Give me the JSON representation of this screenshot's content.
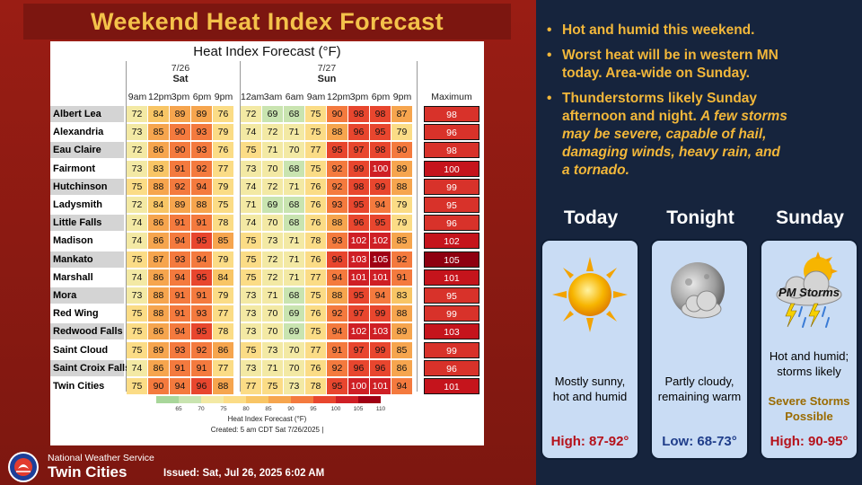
{
  "title": "Weekend Heat Index Forecast",
  "table": {
    "title": "Heat Index Forecast (°F)",
    "days": [
      {
        "date": "7/26",
        "name": "Sat"
      },
      {
        "date": "7/27",
        "name": "Sun"
      }
    ],
    "times": [
      "9am",
      "12pm",
      "3pm",
      "6pm",
      "9pm",
      "12am",
      "3am",
      "6am",
      "9am",
      "12pm",
      "3pm",
      "6pm",
      "9pm"
    ],
    "max_header": "Maximum",
    "rows": [
      {
        "city": "Albert Lea",
        "values": [
          72,
          84,
          89,
          89,
          76,
          72,
          69,
          68,
          75,
          90,
          98,
          98,
          87
        ],
        "max": 98
      },
      {
        "city": "Alexandria",
        "values": [
          73,
          85,
          90,
          93,
          79,
          74,
          72,
          71,
          75,
          88,
          96,
          95,
          79
        ],
        "max": 96
      },
      {
        "city": "Eau Claire",
        "values": [
          72,
          86,
          90,
          93,
          76,
          75,
          71,
          70,
          77,
          95,
          97,
          98,
          90
        ],
        "max": 98
      },
      {
        "city": "Fairmont",
        "values": [
          73,
          83,
          91,
          92,
          77,
          73,
          70,
          68,
          75,
          92,
          99,
          100,
          89
        ],
        "max": 100
      },
      {
        "city": "Hutchinson",
        "values": [
          75,
          88,
          92,
          94,
          79,
          74,
          72,
          71,
          76,
          92,
          98,
          99,
          88
        ],
        "max": 99
      },
      {
        "city": "Ladysmith",
        "values": [
          72,
          84,
          89,
          88,
          75,
          71,
          69,
          68,
          76,
          93,
          95,
          94,
          79
        ],
        "max": 95
      },
      {
        "city": "Little Falls",
        "values": [
          74,
          86,
          91,
          91,
          78,
          74,
          70,
          68,
          76,
          88,
          96,
          95,
          79
        ],
        "max": 96
      },
      {
        "city": "Madison",
        "values": [
          74,
          86,
          94,
          95,
          85,
          75,
          73,
          71,
          78,
          93,
          102,
          102,
          85
        ],
        "max": 102
      },
      {
        "city": "Mankato",
        "values": [
          75,
          87,
          93,
          94,
          79,
          75,
          72,
          71,
          76,
          96,
          103,
          105,
          92
        ],
        "max": 105
      },
      {
        "city": "Marshall",
        "values": [
          74,
          86,
          94,
          95,
          84,
          75,
          72,
          71,
          77,
          94,
          101,
          101,
          91
        ],
        "max": 101
      },
      {
        "city": "Mora",
        "values": [
          73,
          88,
          91,
          91,
          79,
          73,
          71,
          68,
          75,
          88,
          95,
          94,
          83
        ],
        "max": 95
      },
      {
        "city": "Red Wing",
        "values": [
          75,
          88,
          91,
          93,
          77,
          73,
          70,
          69,
          76,
          92,
          97,
          99,
          88
        ],
        "max": 99
      },
      {
        "city": "Redwood Falls",
        "values": [
          75,
          86,
          94,
          95,
          78,
          73,
          70,
          69,
          75,
          94,
          102,
          103,
          89
        ],
        "max": 103
      },
      {
        "city": "Saint Cloud",
        "values": [
          75,
          89,
          93,
          92,
          86,
          75,
          73,
          70,
          77,
          91,
          97,
          99,
          85
        ],
        "max": 99
      },
      {
        "city": "Saint Croix Falls",
        "values": [
          74,
          86,
          91,
          91,
          77,
          73,
          71,
          70,
          76,
          92,
          96,
          96,
          86
        ],
        "max": 96
      },
      {
        "city": "Twin Cities",
        "values": [
          75,
          90,
          94,
          96,
          88,
          77,
          75,
          73,
          78,
          95,
          100,
          101,
          94
        ],
        "max": 101
      }
    ],
    "legend_ticks": [
      "65",
      "70",
      "75",
      "80",
      "85",
      "90",
      "95",
      "100",
      "105",
      "110"
    ],
    "legend_label": "Heat Index Forecast (°F)",
    "created": "Created: 5 am CDT Sat 7/26/2025  |"
  },
  "footer": {
    "agency": "National Weather Service",
    "office": "Twin Cities",
    "issued": "Issued: Sat, Jul 26, 2025 6:02 AM"
  },
  "bullets": [
    {
      "lines": [
        "Hot and humid this weekend."
      ]
    },
    {
      "lines": [
        "Worst heat will be in western MN",
        "today. Area-wide on Sunday."
      ]
    },
    {
      "lines": [
        "Thunderstorms likely Sunday"
      ],
      "mixed_line": {
        "normal": "afternoon and night. ",
        "italic": "A few storms"
      },
      "italic_lines": [
        "may be severe, capable of hail,",
        "damaging winds, heavy rain, and",
        "a tornado."
      ]
    }
  ],
  "forecast": [
    {
      "day": "Today",
      "icon": "sun-icon",
      "desc": [
        "Mostly sunny,",
        "hot and humid"
      ],
      "temp": "High: 87-92°",
      "temp_color": "#b5121b"
    },
    {
      "day": "Tonight",
      "icon": "partly-cloudy-moon-icon",
      "desc": [
        "Partly cloudy,",
        "remaining warm"
      ],
      "temp": "Low: 68-73°",
      "temp_color": "#1f3d8a"
    },
    {
      "day": "Sunday",
      "icon": "thunderstorm-sun-icon",
      "icon_label": "PM Storms",
      "desc": [
        "Hot and humid;",
        "storms likely"
      ],
      "severe": [
        "Severe Storms",
        "Possible"
      ],
      "temp": "High: 90-95°",
      "temp_color": "#b5121b"
    }
  ],
  "colors": {
    "background": "#8a1a12",
    "title": "#f4c24a",
    "right_panel": "#16243d",
    "bullet_text": "#f2b73a",
    "card": "#c9dcf4"
  }
}
